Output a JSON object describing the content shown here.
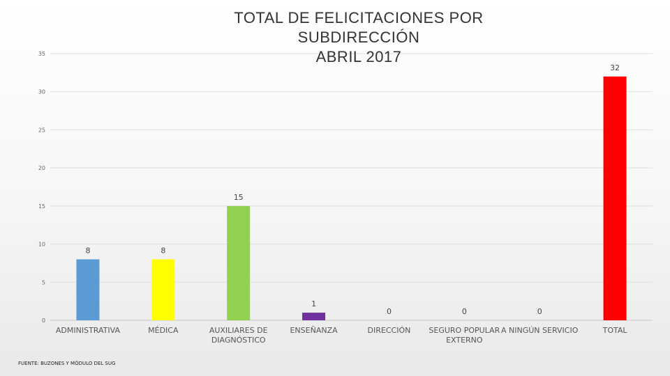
{
  "chart_data": {
    "type": "bar",
    "title_lines": [
      "TOTAL DE FELICITACIONES POR",
      "SUBDIRECCIÓN",
      "ABRIL 2017"
    ],
    "categories": [
      [
        "ADMINISTRATIVA"
      ],
      [
        "MÉDICA"
      ],
      [
        "AUXILIARES DE",
        "DIAGNÓSTICO"
      ],
      [
        "ENSEÑANZA"
      ],
      [
        "DIRECCIÓN"
      ],
      [
        "SEGURO POPULAR",
        "EXTERNO"
      ],
      [
        "A NINGÚN SERVICIO"
      ],
      [
        "TOTAL"
      ]
    ],
    "values": [
      8,
      8,
      15,
      1,
      0,
      0,
      0,
      32
    ],
    "colors": [
      "#5b9bd5",
      "#ffff00",
      "#92d050",
      "#7030a0",
      "#a5a5a5",
      "#a5a5a5",
      "#a5a5a5",
      "#ff0000"
    ],
    "ylim": [
      0,
      35
    ],
    "yticks": [
      0,
      5,
      10,
      15,
      20,
      25,
      30,
      35
    ],
    "grid": true,
    "legend": "none"
  },
  "footer": {
    "source": "FUENTE: BUZONES Y MÓDULO DEL SUG"
  }
}
